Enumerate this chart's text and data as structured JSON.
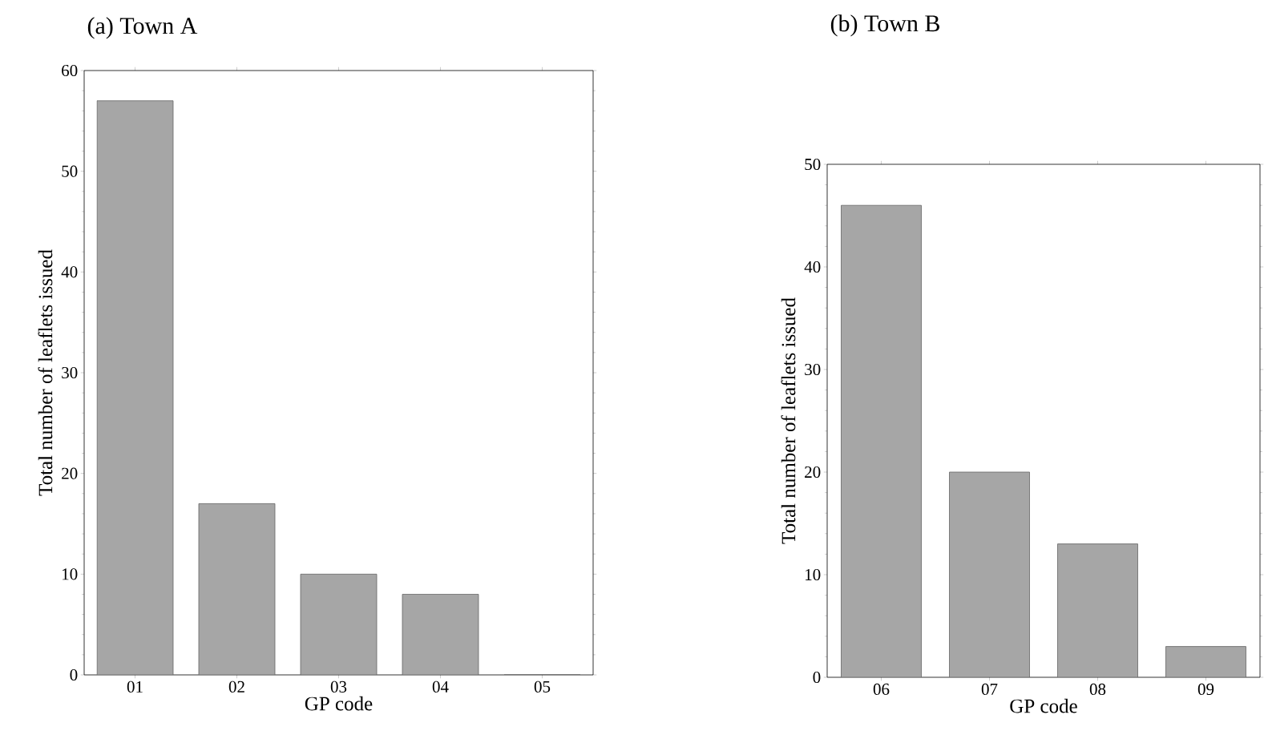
{
  "chart_data": [
    {
      "type": "bar",
      "title": "(a) Town A",
      "xlabel": "GP code",
      "ylabel": "Total number of leaflets issued",
      "categories": [
        "01",
        "02",
        "03",
        "04",
        "05"
      ],
      "values": [
        57,
        17,
        10,
        8,
        0
      ],
      "color": "#a6a6a6",
      "ylim": [
        0,
        60
      ],
      "yticks": [
        0,
        10,
        20,
        30,
        40,
        50,
        60
      ],
      "grid": false
    },
    {
      "type": "bar",
      "title": "(b) Town B",
      "xlabel": "GP code",
      "ylabel": "Total number of leaflets issued",
      "categories": [
        "06",
        "07",
        "08",
        "09"
      ],
      "values": [
        46,
        20,
        13,
        3
      ],
      "color": "#a6a6a6",
      "ylim": [
        0,
        50
      ],
      "yticks": [
        0,
        10,
        20,
        30,
        40,
        50
      ],
      "grid": false
    }
  ]
}
